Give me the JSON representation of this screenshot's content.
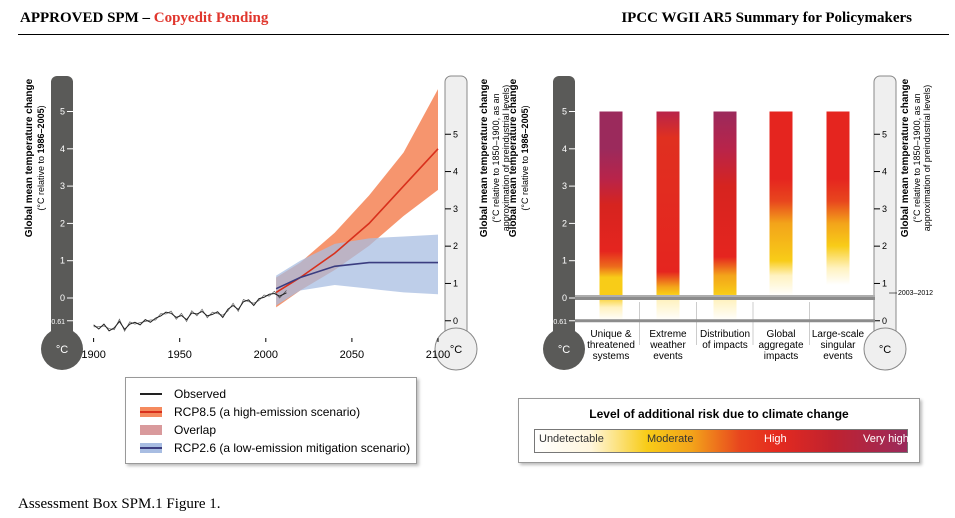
{
  "header": {
    "left_prefix": "APPROVED SPM",
    "left_dash": " – ",
    "left_status": "Copyedit Pending",
    "right_title": "IPCC WGII AR5 Summary for Policymakers"
  },
  "caption": "Assessment Box SPM.1 Figure 1.",
  "colors": {
    "observed": "#222222",
    "rcp85_line": "#d8301c",
    "rcp85_band": "#f58a5e",
    "overlap": "#d99a9c",
    "rcp26_line": "#3b3d80",
    "rcp26_band": "#a8bde2",
    "thermometer": "#5a5a58",
    "thermometer_light": "#efefef",
    "risk_undetectable": "#ffffff",
    "risk_moderate": "#f8cc18",
    "risk_high": "#e52a1f",
    "risk_very_high": "#9b2a5c"
  },
  "chart_data": [
    {
      "type": "line",
      "title": "",
      "ylabel_left": "Global mean temperature change",
      "ylabel_left_sub_prefix": "(°C relative to ",
      "ylabel_left_sub_bold": "1986–2005",
      "ylabel_left_sub_suffix": ")",
      "ylabel_right_line1": "(°C relative to 1850–1900, as an",
      "ylabel_right_line2": "approximation of preindustrial levels)",
      "unit_label": "°C",
      "xlim": [
        1895,
        2100
      ],
      "ylim": [
        -0.61,
        5.9
      ],
      "left_ticks": [
        "5",
        "4",
        "3",
        "2",
        "1",
        "0",
        "-0.61"
      ],
      "left_tick_values": [
        5,
        4,
        3,
        2,
        1,
        0,
        -0.61
      ],
      "right_ticks": [
        "5",
        "4",
        "3",
        "2",
        "1",
        "0"
      ],
      "right_tick_values": [
        5,
        4,
        3,
        2,
        1,
        0
      ],
      "right_offset": 0.61,
      "x_ticks": [
        "1900",
        "1950",
        "2000",
        "2050",
        "2100"
      ],
      "x_tick_values": [
        1900,
        1950,
        2000,
        2050,
        2100
      ],
      "observed": {
        "x": [
          1900,
          1903,
          1906,
          1909,
          1912,
          1915,
          1918,
          1921,
          1924,
          1927,
          1930,
          1933,
          1936,
          1939,
          1942,
          1945,
          1948,
          1951,
          1954,
          1957,
          1960,
          1963,
          1966,
          1969,
          1972,
          1975,
          1978,
          1981,
          1984,
          1987,
          1990,
          1993,
          1996,
          1999,
          2002,
          2005,
          2008,
          2012
        ],
        "y": [
          -0.72,
          -0.83,
          -0.7,
          -0.88,
          -0.8,
          -0.63,
          -0.84,
          -0.7,
          -0.65,
          -0.72,
          -0.58,
          -0.65,
          -0.54,
          -0.48,
          -0.38,
          -0.41,
          -0.52,
          -0.47,
          -0.58,
          -0.4,
          -0.43,
          -0.36,
          -0.48,
          -0.44,
          -0.37,
          -0.52,
          -0.3,
          -0.2,
          -0.31,
          -0.1,
          -0.05,
          -0.2,
          -0.02,
          0.02,
          0.1,
          0.12,
          0.05,
          0.14
        ]
      },
      "series": [
        {
          "name": "RCP8.5 (a high-emission scenario)",
          "x": [
            2006,
            2020,
            2040,
            2060,
            2080,
            2100
          ],
          "mean": [
            0.15,
            0.55,
            1.2,
            2.0,
            3.0,
            4.0
          ],
          "lower": [
            -0.25,
            0.2,
            0.75,
            1.4,
            2.2,
            2.9
          ],
          "upper": [
            0.55,
            0.95,
            1.75,
            2.75,
            3.9,
            5.6
          ]
        },
        {
          "name": "RCP2.6 (a low-emission mitigation scenario)",
          "x": [
            2006,
            2020,
            2040,
            2060,
            2080,
            2100
          ],
          "mean": [
            0.25,
            0.55,
            0.85,
            0.95,
            0.95,
            0.95
          ],
          "lower": [
            -0.2,
            0.2,
            0.35,
            0.25,
            0.15,
            0.1
          ],
          "upper": [
            0.6,
            1.0,
            1.45,
            1.6,
            1.65,
            1.7
          ]
        }
      ],
      "legend": [
        {
          "key": "observed",
          "label": "Observed"
        },
        {
          "key": "rcp85",
          "label": "RCP8.5 (a high-emission scenario)"
        },
        {
          "key": "overlap",
          "label": "Overlap"
        },
        {
          "key": "rcp26",
          "label": "RCP2.6 (a low-emission mitigation scenario)"
        }
      ]
    },
    {
      "type": "bar",
      "ylabel_left": "Global mean temperature change",
      "ylabel_left_sub_prefix": "(°C relative to ",
      "ylabel_left_sub_bold": "1986–2005",
      "ylabel_left_sub_suffix": ")",
      "ylabel_right_line1": "(°C relative to 1850–1900, as an",
      "ylabel_right_line2": "approximation of preindustrial levels)",
      "unit_label": "°C",
      "ylim": [
        -0.61,
        5.9
      ],
      "left_ticks": [
        "5",
        "4",
        "3",
        "2",
        "1",
        "0",
        "-0.61"
      ],
      "left_tick_values": [
        5,
        4,
        3,
        2,
        1,
        0,
        -0.61
      ],
      "right_ticks": [
        "5",
        "4",
        "3",
        "2",
        "1",
        "0"
      ],
      "right_tick_values": [
        5,
        4,
        3,
        2,
        1,
        0
      ],
      "right_offset": 0.61,
      "band_label": "2003–2012",
      "band_value": 0.0,
      "categories": [
        [
          "Unique &",
          "threatened",
          "systems"
        ],
        [
          "Extreme",
          "weather",
          "events"
        ],
        [
          "Distribution",
          "of impacts"
        ],
        [
          "Global",
          "aggregate",
          "impacts"
        ],
        [
          "Large-scale",
          "singular",
          "events"
        ]
      ],
      "bar_top": 5.0,
      "bar_bottom": -0.61,
      "risk_stops": [
        [
          [
            -0.61,
            "#ffffff"
          ],
          [
            -0.25,
            "#fff2c0"
          ],
          [
            0.05,
            "#f8cc18"
          ],
          [
            0.55,
            "#f8cc18"
          ],
          [
            0.85,
            "#ec6a1c"
          ],
          [
            1.25,
            "#e5251f"
          ],
          [
            2.5,
            "#d6241f"
          ],
          [
            3.2,
            "#b8244a"
          ],
          [
            4.0,
            "#9b2a5c"
          ],
          [
            5.0,
            "#9b2a5c"
          ]
        ],
        [
          [
            -0.61,
            "#ffffff"
          ],
          [
            -0.05,
            "#fff2c0"
          ],
          [
            0.1,
            "#f8cc18"
          ],
          [
            0.3,
            "#f3a41a"
          ],
          [
            0.7,
            "#e5251f"
          ],
          [
            4.3,
            "#e03020"
          ],
          [
            5.0,
            "#b8244a"
          ]
        ],
        [
          [
            -0.61,
            "#ffffff"
          ],
          [
            -0.05,
            "#fff2c0"
          ],
          [
            0.1,
            "#f8cc18"
          ],
          [
            0.6,
            "#f3a41a"
          ],
          [
            1.1,
            "#e5251f"
          ],
          [
            3.0,
            "#d6241f"
          ],
          [
            4.0,
            "#b8244a"
          ],
          [
            5.0,
            "#9b2a5c"
          ]
        ],
        [
          [
            -0.61,
            "#ffffff"
          ],
          [
            0.05,
            "#ffffff"
          ],
          [
            0.6,
            "#fff2c0"
          ],
          [
            1.0,
            "#f8cc18"
          ],
          [
            2.0,
            "#f3a41a"
          ],
          [
            2.6,
            "#e8461e"
          ],
          [
            3.2,
            "#e5251f"
          ],
          [
            5.0,
            "#e5251f"
          ]
        ],
        [
          [
            -0.61,
            "#ffffff"
          ],
          [
            0.35,
            "#ffffff"
          ],
          [
            0.8,
            "#fff2c0"
          ],
          [
            1.4,
            "#f8cc18"
          ],
          [
            2.0,
            "#f3a41a"
          ],
          [
            2.6,
            "#e8461e"
          ],
          [
            3.2,
            "#e5251f"
          ],
          [
            5.0,
            "#e5251f"
          ]
        ]
      ],
      "legend": {
        "title": "Level of additional risk due to climate change",
        "labels": [
          "Undetectable",
          "Moderate",
          "High",
          "Very high"
        ]
      }
    }
  ]
}
